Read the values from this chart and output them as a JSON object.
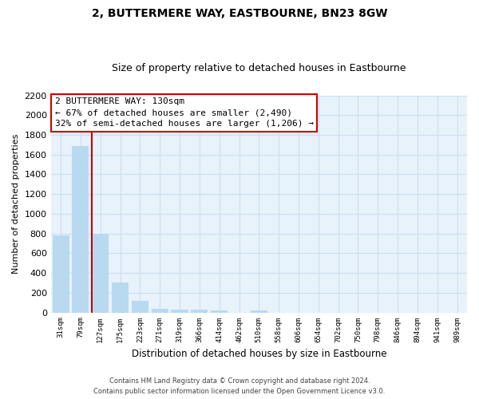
{
  "title": "2, BUTTERMERE WAY, EASTBOURNE, BN23 8GW",
  "subtitle": "Size of property relative to detached houses in Eastbourne",
  "xlabel": "Distribution of detached houses by size in Eastbourne",
  "ylabel": "Number of detached properties",
  "footer_line1": "Contains HM Land Registry data © Crown copyright and database right 2024.",
  "footer_line2": "Contains public sector information licensed under the Open Government Licence v3.0.",
  "bar_labels": [
    "31sqm",
    "79sqm",
    "127sqm",
    "175sqm",
    "223sqm",
    "271sqm",
    "319sqm",
    "366sqm",
    "414sqm",
    "462sqm",
    "510sqm",
    "558sqm",
    "606sqm",
    "654sqm",
    "702sqm",
    "750sqm",
    "798sqm",
    "846sqm",
    "894sqm",
    "941sqm",
    "989sqm"
  ],
  "bar_values": [
    780,
    1690,
    800,
    300,
    115,
    35,
    30,
    30,
    20,
    0,
    20,
    0,
    0,
    0,
    0,
    0,
    0,
    0,
    0,
    0,
    0
  ],
  "bar_color": "#b8d9f0",
  "vline_index": 2,
  "vline_color": "#cc0000",
  "ylim": [
    0,
    2200
  ],
  "yticks": [
    0,
    200,
    400,
    600,
    800,
    1000,
    1200,
    1400,
    1600,
    1800,
    2000,
    2200
  ],
  "annotation_title": "2 BUTTERMERE WAY: 130sqm",
  "annotation_line1": "← 67% of detached houses are smaller (2,490)",
  "annotation_line2": "32% of semi-detached houses are larger (1,206) →",
  "grid_color": "#ccdff0",
  "bg_color": "#e8f2fb",
  "title_fontsize": 10,
  "subtitle_fontsize": 9
}
